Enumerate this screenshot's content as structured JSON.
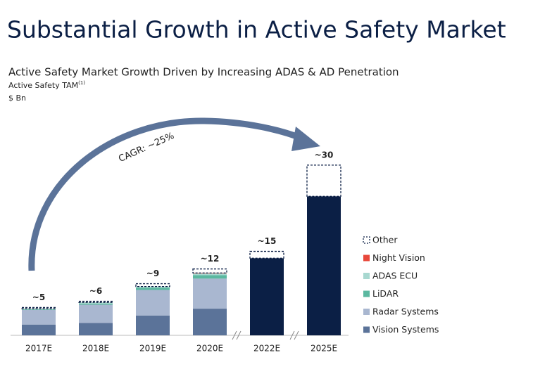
{
  "header": {
    "title": "Substantial Growth in Active Safety Market"
  },
  "chart_data": {
    "type": "stacked-bar",
    "title": "Active Safety Market Growth Driven by Increasing ADAS & AD Penetration",
    "ylabel": "Active Safety TAM",
    "ylabel_note": "(1)",
    "unit": "$ Bn",
    "annotation": "CAGR: ~25%",
    "categories": [
      "2017E",
      "2018E",
      "2019E",
      "2020E",
      "2022E",
      "2025E"
    ],
    "value_labels": [
      "~5",
      "~6",
      "~9",
      "~12",
      "~15",
      "~30"
    ],
    "series": [
      {
        "name": "Vision Systems",
        "color": "#5b7399",
        "values": [
          1.9,
          2.2,
          3.5,
          4.7,
          null,
          null
        ]
      },
      {
        "name": "Radar Systems",
        "color": "#a9b7d0",
        "values": [
          2.6,
          3.2,
          4.5,
          5.3,
          null,
          null
        ]
      },
      {
        "name": "LiDAR",
        "color": "#5bb8a0",
        "values": [
          0.1,
          0.2,
          0.4,
          0.6,
          null,
          null
        ]
      },
      {
        "name": "ADAS ECU",
        "color": "#a8d8d0",
        "values": [
          0.1,
          0.2,
          0.2,
          0.3,
          null,
          null
        ]
      },
      {
        "name": "Night Vision",
        "color": "#e8483b",
        "values": [
          0,
          0,
          0,
          0.1,
          null,
          null
        ]
      },
      {
        "color": "#0b1f45",
        "values": [
          null,
          null,
          null,
          null,
          13.6,
          24.5
        ]
      },
      {
        "name": "Other",
        "color": "#0b1f45",
        "outline": true,
        "values": [
          0.2,
          0.2,
          0.5,
          0.7,
          1.2,
          5.5
        ]
      }
    ]
  }
}
